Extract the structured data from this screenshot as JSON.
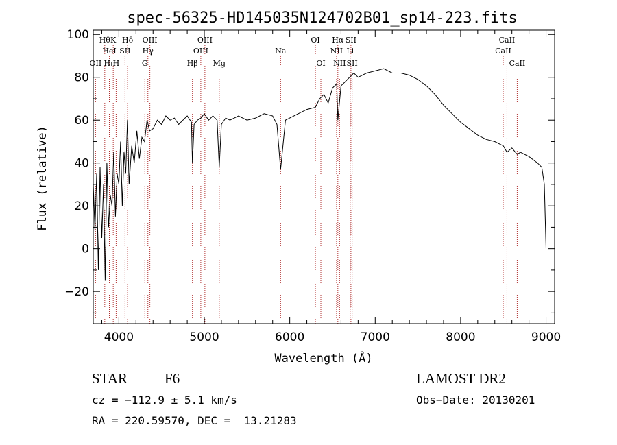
{
  "chart_data": {
    "type": "line",
    "title": "spec-56325-HD145035N124702B01_sp14-223.fits",
    "xlabel": "Wavelength (Å)",
    "ylabel": "Flux (relative)",
    "xlim": [
      3700,
      9100
    ],
    "ylim": [
      -35,
      102
    ],
    "xticks": [
      4000,
      5000,
      6000,
      7000,
      8000,
      9000
    ],
    "yticks": [
      -20,
      0,
      20,
      40,
      60,
      80,
      100
    ],
    "grid": false,
    "series": [
      {
        "color": "#000000",
        "x": [
          3700,
          3720,
          3740,
          3760,
          3780,
          3800,
          3820,
          3840,
          3860,
          3880,
          3900,
          3920,
          3940,
          3960,
          3980,
          4000,
          4020,
          4040,
          4060,
          4080,
          4100,
          4120,
          4150,
          4180,
          4210,
          4240,
          4270,
          4300,
          4330,
          4360,
          4400,
          4450,
          4500,
          4550,
          4600,
          4650,
          4700,
          4750,
          4800,
          4850,
          4861,
          4880,
          4920,
          4960,
          5000,
          5050,
          5100,
          5150,
          5175,
          5200,
          5250,
          5300,
          5400,
          5500,
          5600,
          5700,
          5800,
          5850,
          5893,
          5950,
          6000,
          6100,
          6200,
          6300,
          6350,
          6400,
          6450,
          6500,
          6550,
          6563,
          6600,
          6650,
          6700,
          6750,
          6800,
          6900,
          7000,
          7100,
          7200,
          7300,
          7400,
          7500,
          7600,
          7700,
          7800,
          7900,
          8000,
          8100,
          8200,
          8300,
          8400,
          8500,
          8542,
          8600,
          8662,
          8700,
          8800,
          8900,
          8950,
          8980,
          9000
        ],
        "values": [
          30,
          8,
          35,
          -10,
          38,
          5,
          30,
          -15,
          40,
          10,
          25,
          20,
          45,
          15,
          35,
          30,
          50,
          20,
          45,
          35,
          60,
          30,
          48,
          40,
          55,
          42,
          52,
          50,
          60,
          55,
          56,
          60,
          58,
          62,
          60,
          61,
          58,
          60,
          62,
          59,
          40,
          58,
          60,
          61,
          63,
          60,
          62,
          60,
          38,
          58,
          61,
          60,
          62,
          60,
          61,
          63,
          62,
          58,
          37,
          60,
          61,
          63,
          65,
          66,
          70,
          72,
          68,
          75,
          77,
          60,
          76,
          78,
          80,
          82,
          80,
          82,
          83,
          84,
          82,
          82,
          81,
          79,
          76,
          72,
          67,
          63,
          59,
          56,
          53,
          51,
          50,
          48,
          45,
          47,
          44,
          45,
          43,
          40,
          38,
          30,
          0
        ]
      }
    ],
    "lines": [
      {
        "wavelength": 3727,
        "label": "OII",
        "row": 3
      },
      {
        "wavelength": 3835,
        "label": "Hθ",
        "row": 1
      },
      {
        "wavelength": 3889,
        "label": "HeI",
        "row": 2
      },
      {
        "wavelength": 3889,
        "label": "Hη",
        "row": 3
      },
      {
        "wavelength": 3934,
        "label": "K",
        "row": 1
      },
      {
        "wavelength": 3968,
        "label": "H",
        "row": 3
      },
      {
        "wavelength": 4072,
        "label": "SII",
        "row": 2
      },
      {
        "wavelength": 4102,
        "label": "Hδ",
        "row": 1
      },
      {
        "wavelength": 4304,
        "label": "G",
        "row": 3
      },
      {
        "wavelength": 4340,
        "label": "Hγ",
        "row": 2
      },
      {
        "wavelength": 4363,
        "label": "OIII",
        "row": 1
      },
      {
        "wavelength": 4861,
        "label": "Hβ",
        "row": 3
      },
      {
        "wavelength": 4959,
        "label": "OIII",
        "row": 2
      },
      {
        "wavelength": 5007,
        "label": "OIII",
        "row": 1
      },
      {
        "wavelength": 5175,
        "label": "Mg",
        "row": 3
      },
      {
        "wavelength": 5893,
        "label": "Na",
        "row": 2
      },
      {
        "wavelength": 6300,
        "label": "OI",
        "row": 1
      },
      {
        "wavelength": 6364,
        "label": "OI",
        "row": 3
      },
      {
        "wavelength": 6548,
        "label": "NII",
        "row": 2
      },
      {
        "wavelength": 6563,
        "label": "Hα",
        "row": 1
      },
      {
        "wavelength": 6583,
        "label": "NII",
        "row": 3
      },
      {
        "wavelength": 6707,
        "label": "Li",
        "row": 2
      },
      {
        "wavelength": 6716,
        "label": "SII",
        "row": 1
      },
      {
        "wavelength": 6730,
        "label": "SII",
        "row": 3
      },
      {
        "wavelength": 8498,
        "label": "CaII",
        "row": 2
      },
      {
        "wavelength": 8542,
        "label": "CaII",
        "row": 1
      },
      {
        "wavelength": 8662,
        "label": "CaII",
        "row": 3
      }
    ]
  },
  "info": {
    "class_label": "STAR",
    "subclass": "F6",
    "survey": "LAMOST DR2",
    "cz": "cz = −112.9 ± 5.1 km/s",
    "obs_date": "Obs−Date: 20130201",
    "radec": "RA = 220.59570, DEC =  13.21283"
  }
}
